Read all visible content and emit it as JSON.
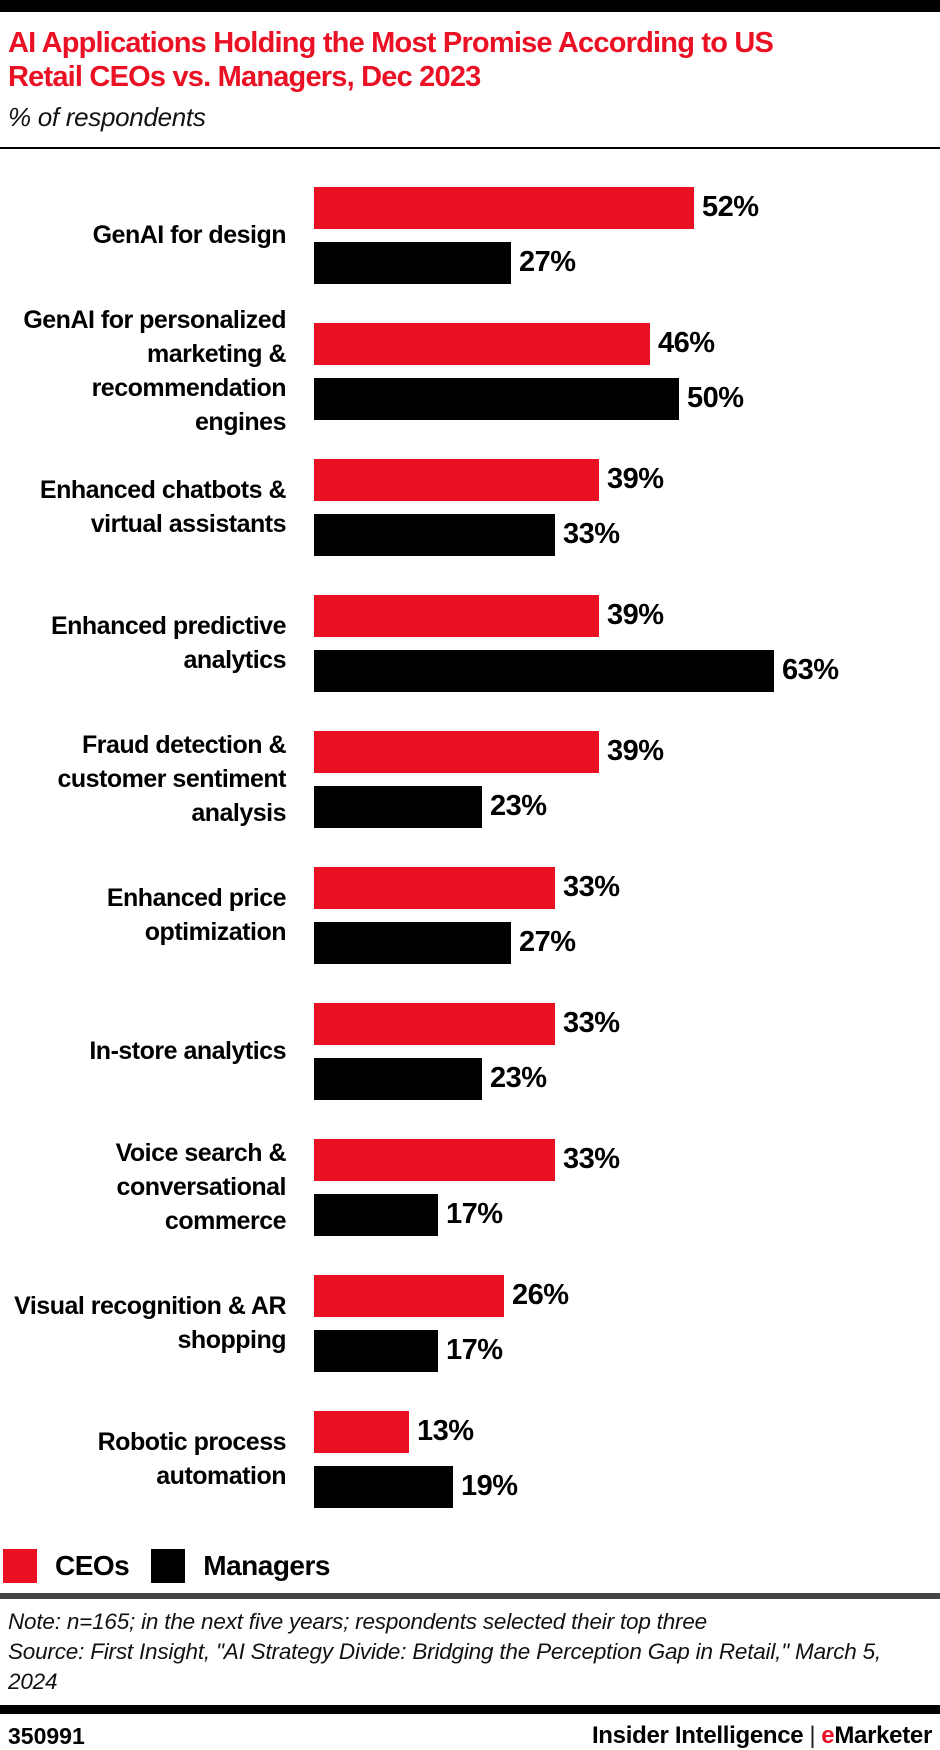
{
  "colors": {
    "accent_red": "#EA1124",
    "series_black": "#000000",
    "rule_gray": "#444444"
  },
  "header": {
    "title": "AI Applications Holding the Most Promise According to US Retail CEOs vs. Managers, Dec 2023",
    "subtitle": "% of respondents"
  },
  "chart_data": {
    "type": "bar",
    "orientation": "horizontal",
    "value_suffix": "%",
    "xlim": [
      0,
      63
    ],
    "grid": false,
    "legend_position": "bottom-left",
    "categories": [
      "GenAI for design",
      "GenAI for personalized marketing & recommendation engines",
      "Enhanced chatbots & virtual assistants",
      "Enhanced predictive analytics",
      "Fraud detection & customer sentiment analysis",
      "Enhanced price optimization",
      "In-store analytics",
      "Voice search & conversational commerce",
      "Visual recognition & AR shopping",
      "Robotic process automation"
    ],
    "series": [
      {
        "name": "CEOs",
        "color": "#EA1124",
        "values": [
          52,
          46,
          39,
          39,
          39,
          33,
          33,
          33,
          26,
          13
        ]
      },
      {
        "name": "Managers",
        "color": "#000000",
        "values": [
          27,
          50,
          33,
          63,
          23,
          27,
          23,
          17,
          17,
          19
        ]
      }
    ]
  },
  "legend": {
    "items": [
      {
        "label": "CEOs",
        "color": "#EA1124"
      },
      {
        "label": "Managers",
        "color": "#000000"
      }
    ]
  },
  "footer": {
    "note": "Note: n=165; in the next five years; respondents selected their top three",
    "source": "Source: First Insight, \"AI Strategy Divide: Bridging the Perception Gap in Retail,\" March 5, 2024",
    "chart_id": "350991",
    "brand_left": "Insider Intelligence",
    "brand_divider": "|",
    "brand_e": "e",
    "brand_rest": "Marketer"
  }
}
